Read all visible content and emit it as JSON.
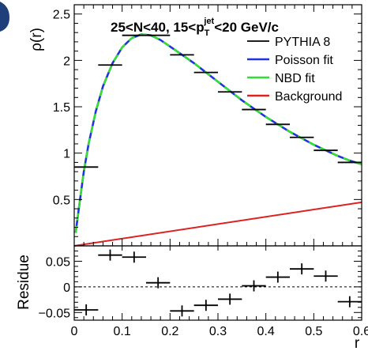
{
  "chart_data": [
    {
      "type": "line",
      "panel": "main",
      "title": {
        "lead": "25<N<40, 15<p",
        "sub": "T",
        "sup": "jet",
        "tail": "<20 GeV/c"
      },
      "ylabel": "ρ(r)",
      "xlim": [
        0,
        0.6
      ],
      "ylim": [
        0,
        2.6
      ],
      "xticks": [
        0,
        0.1,
        0.2,
        0.3,
        0.4,
        0.5,
        0.6
      ],
      "yticks": [
        {
          "value": 0.5,
          "label": "0.5"
        },
        {
          "value": 1,
          "label": "1"
        },
        {
          "value": 1.5,
          "label": "1.5"
        },
        {
          "value": 2,
          "label": "2"
        },
        {
          "value": 2.5,
          "label": "2.5"
        }
      ],
      "legend_position": "top-right",
      "legend": [
        {
          "label": "PYTHIA 8",
          "color": "#000000"
        },
        {
          "label": "Poisson fit",
          "color": "#2233dd"
        },
        {
          "label": "NBD fit",
          "color": "#33dd33"
        },
        {
          "label": "Background",
          "color": "#dd2222"
        }
      ],
      "points": [
        {
          "x": 0.025,
          "y": 0.85
        },
        {
          "x": 0.075,
          "y": 1.95
        },
        {
          "x": 0.125,
          "y": 2.27
        },
        {
          "x": 0.175,
          "y": 2.27
        },
        {
          "x": 0.225,
          "y": 2.06
        },
        {
          "x": 0.275,
          "y": 1.87
        },
        {
          "x": 0.325,
          "y": 1.66
        },
        {
          "x": 0.375,
          "y": 1.47
        },
        {
          "x": 0.425,
          "y": 1.31
        },
        {
          "x": 0.475,
          "y": 1.17
        },
        {
          "x": 0.525,
          "y": 1.03
        },
        {
          "x": 0.575,
          "y": 0.9
        }
      ],
      "fit_curve": [
        {
          "x": 0.003,
          "y": 0.14
        },
        {
          "x": 0.01,
          "y": 0.42
        },
        {
          "x": 0.02,
          "y": 0.8
        },
        {
          "x": 0.03,
          "y": 1.1
        },
        {
          "x": 0.045,
          "y": 1.45
        },
        {
          "x": 0.06,
          "y": 1.72
        },
        {
          "x": 0.08,
          "y": 1.97
        },
        {
          "x": 0.1,
          "y": 2.14
        },
        {
          "x": 0.12,
          "y": 2.24
        },
        {
          "x": 0.14,
          "y": 2.28
        },
        {
          "x": 0.16,
          "y": 2.27
        },
        {
          "x": 0.18,
          "y": 2.22
        },
        {
          "x": 0.2,
          "y": 2.15
        },
        {
          "x": 0.225,
          "y": 2.06
        },
        {
          "x": 0.25,
          "y": 1.97
        },
        {
          "x": 0.275,
          "y": 1.87
        },
        {
          "x": 0.3,
          "y": 1.77
        },
        {
          "x": 0.325,
          "y": 1.67
        },
        {
          "x": 0.35,
          "y": 1.57
        },
        {
          "x": 0.375,
          "y": 1.48
        },
        {
          "x": 0.4,
          "y": 1.39
        },
        {
          "x": 0.425,
          "y": 1.31
        },
        {
          "x": 0.45,
          "y": 1.23
        },
        {
          "x": 0.475,
          "y": 1.16
        },
        {
          "x": 0.5,
          "y": 1.09
        },
        {
          "x": 0.525,
          "y": 1.03
        },
        {
          "x": 0.55,
          "y": 0.97
        },
        {
          "x": 0.575,
          "y": 0.92
        },
        {
          "x": 0.6,
          "y": 0.88
        }
      ],
      "background_line": [
        {
          "x": 0,
          "y": 0.0
        },
        {
          "x": 0.6,
          "y": 0.47
        }
      ]
    },
    {
      "type": "scatter",
      "panel": "residue",
      "ylabel": "Residue",
      "xlabel": "r",
      "xlim": [
        0,
        0.6
      ],
      "ylim": [
        -0.065,
        0.08
      ],
      "xticks": [
        {
          "value": 0,
          "label": "0"
        },
        {
          "value": 0.1,
          "label": "0.1"
        },
        {
          "value": 0.2,
          "label": "0.2"
        },
        {
          "value": 0.3,
          "label": "0.3"
        },
        {
          "value": 0.4,
          "label": "0.4"
        },
        {
          "value": 0.5,
          "label": "0.5"
        },
        {
          "value": 0.6,
          "label": "0.6"
        }
      ],
      "yticks": [
        {
          "value": -0.05,
          "label": "−0.05"
        },
        {
          "value": 0,
          "label": "0"
        },
        {
          "value": 0.05,
          "label": "0.05"
        }
      ],
      "zero_line": 0,
      "points": [
        {
          "x": 0.025,
          "y": -0.045
        },
        {
          "x": 0.075,
          "y": 0.062
        },
        {
          "x": 0.125,
          "y": 0.058
        },
        {
          "x": 0.175,
          "y": 0.008
        },
        {
          "x": 0.225,
          "y": -0.047
        },
        {
          "x": 0.275,
          "y": -0.036
        },
        {
          "x": 0.325,
          "y": -0.024
        },
        {
          "x": 0.375,
          "y": 0.002
        },
        {
          "x": 0.425,
          "y": 0.019
        },
        {
          "x": 0.475,
          "y": 0.035
        },
        {
          "x": 0.525,
          "y": 0.021
        },
        {
          "x": 0.575,
          "y": -0.029
        }
      ]
    }
  ]
}
